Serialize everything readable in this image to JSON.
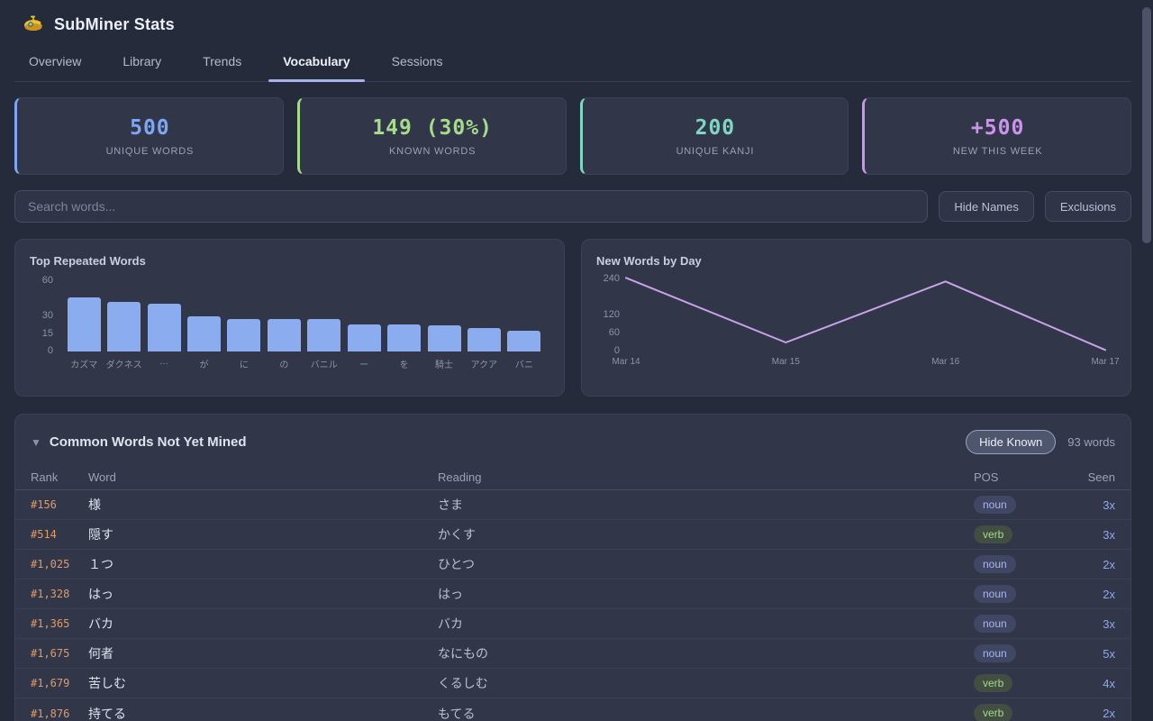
{
  "app": {
    "title": "SubMiner Stats"
  },
  "tabs": [
    {
      "label": "Overview",
      "active": false
    },
    {
      "label": "Library",
      "active": false
    },
    {
      "label": "Trends",
      "active": false
    },
    {
      "label": "Vocabulary",
      "active": true
    },
    {
      "label": "Sessions",
      "active": false
    }
  ],
  "stats": [
    {
      "value": "500",
      "label": "UNIQUE WORDS",
      "color": "#7ea6f4"
    },
    {
      "value": "149 (30%)",
      "label": "KNOWN WORDS",
      "color": "#a6da8c"
    },
    {
      "value": "200",
      "label": "UNIQUE KANJI",
      "color": "#7fd6c4"
    },
    {
      "value": "+500",
      "label": "NEW THIS WEEK",
      "color": "#cb93ec"
    }
  ],
  "search": {
    "placeholder": "Search words..."
  },
  "buttons": {
    "hide_names": "Hide Names",
    "exclusions": "Exclusions"
  },
  "chart_data": [
    {
      "type": "bar",
      "title": "Top Repeated Words",
      "categories": [
        "カズマ",
        "ダクネス",
        "…",
        "が",
        "に",
        "の",
        "バニル",
        "ー",
        "を",
        "騎士",
        "アクア",
        "バニ"
      ],
      "values": [
        46,
        42,
        41,
        30,
        28,
        28,
        28,
        23,
        23,
        22,
        20,
        18
      ],
      "yticks": [
        60,
        30,
        15,
        0
      ],
      "ylim": [
        0,
        60
      ],
      "bar_color": "#8cacf0",
      "grid": false,
      "legend": false
    },
    {
      "type": "line",
      "title": "New Words by Day",
      "x": [
        "Mar 14",
        "Mar 15",
        "Mar 16",
        "Mar 17"
      ],
      "values": [
        245,
        30,
        233,
        5
      ],
      "yticks": [
        240,
        120,
        60,
        0
      ],
      "ylim": [
        0,
        250
      ],
      "line_color": "#c9a2ea",
      "grid": false,
      "legend": false
    }
  ],
  "table": {
    "collapse_icon": "▼",
    "title": "Common Words Not Yet Mined",
    "hide_known_label": "Hide Known",
    "count_label": "93 words",
    "columns": [
      "Rank",
      "Word",
      "Reading",
      "POS",
      "Seen"
    ],
    "pos_colors": {
      "noun": {
        "bg": "#3f4763",
        "text": "#a9b5ee"
      },
      "verb": {
        "bg": "#414e41",
        "text": "#a6d98c"
      }
    },
    "rows": [
      {
        "rank": "#156",
        "word": "様",
        "reading": "さま",
        "pos": "noun",
        "seen": "3x"
      },
      {
        "rank": "#514",
        "word": "隠す",
        "reading": "かくす",
        "pos": "verb",
        "seen": "3x"
      },
      {
        "rank": "#1,025",
        "word": "１つ",
        "reading": "ひとつ",
        "pos": "noun",
        "seen": "2x"
      },
      {
        "rank": "#1,328",
        "word": "はっ",
        "reading": "はっ",
        "pos": "noun",
        "seen": "2x"
      },
      {
        "rank": "#1,365",
        "word": "バカ",
        "reading": "バカ",
        "pos": "noun",
        "seen": "3x"
      },
      {
        "rank": "#1,675",
        "word": "何者",
        "reading": "なにもの",
        "pos": "noun",
        "seen": "5x"
      },
      {
        "rank": "#1,679",
        "word": "苦しむ",
        "reading": "くるしむ",
        "pos": "verb",
        "seen": "4x"
      },
      {
        "rank": "#1,876",
        "word": "持てる",
        "reading": "もてる",
        "pos": "verb",
        "seen": "2x"
      }
    ]
  }
}
